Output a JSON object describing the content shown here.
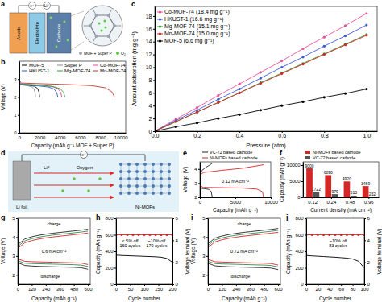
{
  "diagrams": {
    "a": {
      "panel": "a",
      "labels": {
        "anode": "Anode",
        "electrolyte": "Electrolyte",
        "cathode": "Cathode",
        "electron": "e⁻",
        "lithium_ion": "Li⁺"
      },
      "key": [
        "MOF + Super P",
        "O₂"
      ]
    },
    "d": {
      "panel": "d",
      "labels": {
        "lithium_ion": "Li⁺",
        "oxygen": "Oxygen",
        "electron": "e⁻",
        "li_foil": "Li foil",
        "ni_mofs": "Ni-MOFs"
      }
    }
  },
  "chart_data": [
    {
      "panel": "b",
      "type": "line",
      "x_label": "Capacity (mAh g⁻¹ MOF + Super P)",
      "y_label": "Voltage (V)",
      "xlim": [
        0,
        10500
      ],
      "xticks": [
        0,
        2000,
        4000,
        6000,
        8000,
        10000
      ],
      "ylim": [
        0,
        4
      ],
      "yticks": [
        0,
        1,
        2,
        3
      ],
      "legend": "upper left",
      "series": [
        {
          "name": "MOF-5",
          "color": "#000000",
          "x": [
            0,
            40,
            500,
            1000,
            1500,
            1800,
            1940,
            2000
          ],
          "values": [
            2.85,
            2.72,
            2.68,
            2.65,
            2.6,
            2.48,
            2.28,
            2.0
          ]
        },
        {
          "name": "Super P",
          "color": "#8c8c8c",
          "x": [
            0,
            30,
            400,
            800,
            1200,
            1440,
            1550,
            1600
          ],
          "values": [
            2.85,
            2.7,
            2.66,
            2.63,
            2.58,
            2.45,
            2.25,
            2.0
          ]
        },
        {
          "name": "Co-MOF-74",
          "color": "#e0479e",
          "x": [
            0,
            80,
            1050,
            2100,
            3150,
            3780,
            4070,
            4200
          ],
          "values": [
            2.9,
            2.74,
            2.7,
            2.66,
            2.6,
            2.48,
            2.28,
            2.0
          ]
        },
        {
          "name": "HKUST-1",
          "color": "#2b59c3",
          "x": [
            0,
            80,
            950,
            1900,
            2850,
            3420,
            3690,
            3800
          ],
          "values": [
            2.85,
            2.7,
            2.66,
            2.62,
            2.56,
            2.45,
            2.25,
            2.0
          ]
        },
        {
          "name": "Mg-MOF-74",
          "color": "#2ca02c",
          "x": [
            0,
            90,
            1125,
            2250,
            3375,
            4050,
            4370,
            4500
          ],
          "values": [
            2.88,
            2.73,
            2.69,
            2.65,
            2.58,
            2.46,
            2.26,
            2.0
          ]
        },
        {
          "name": "Mn-MOF-74",
          "color": "#c0392b",
          "x": [
            0,
            190,
            2350,
            4700,
            7050,
            8460,
            9120,
            9400
          ],
          "values": [
            2.95,
            2.78,
            2.74,
            2.7,
            2.64,
            2.52,
            2.3,
            2.0
          ]
        }
      ]
    },
    {
      "panel": "c",
      "type": "line",
      "marker": "circle",
      "x_label": "Pressure (atm)",
      "y_label": "Amount adsorption (mg g⁻¹)",
      "xlim": [
        0,
        1.05
      ],
      "xticks": [
        {
          "value": 0,
          "label": "0.0"
        },
        0.2,
        0.4,
        0.6,
        0.8,
        {
          "value": 1,
          "label": "1.0"
        }
      ],
      "ylim": [
        0,
        19.5
      ],
      "yticks": [
        0,
        2,
        4,
        6,
        8,
        10,
        12,
        14,
        16,
        18
      ],
      "legend": "upper left",
      "x": [
        0,
        0.1,
        0.2,
        0.3,
        0.4,
        0.5,
        0.6,
        0.7,
        0.8,
        0.9,
        1.0
      ],
      "series": [
        {
          "name": "Co-MOF-74 (18.4 mg g⁻¹)",
          "color": "#e8529a",
          "values": [
            0,
            1.9,
            3.7,
            5.6,
            7.4,
            9.2,
            11.0,
            12.9,
            14.7,
            16.5,
            18.4
          ]
        },
        {
          "name": "HKUST-1 (16.6 mg g⁻¹)",
          "color": "#3b5bdb",
          "values": [
            0,
            1.7,
            3.3,
            5.0,
            6.6,
            8.3,
            10.0,
            11.6,
            13.3,
            14.9,
            16.6
          ]
        },
        {
          "name": "Mg-MOF-74 (15.1 mg g⁻¹)",
          "color": "#2ca02c",
          "values": [
            0,
            1.5,
            3.0,
            4.5,
            6.0,
            7.6,
            9.1,
            10.6,
            12.1,
            13.6,
            15.1
          ]
        },
        {
          "name": "Mn-MOF-74 (15.0 mg g⁻¹)",
          "color": "#d62728",
          "values": [
            0,
            1.5,
            3.0,
            4.5,
            6.0,
            7.5,
            9.0,
            10.5,
            12.0,
            13.5,
            15.0
          ]
        },
        {
          "name": "MOF-5 (6.6 mg g⁻¹)",
          "color": "#000000",
          "values": [
            0,
            0.7,
            1.3,
            2.0,
            2.6,
            3.3,
            4.0,
            4.6,
            5.3,
            5.9,
            6.6
          ]
        }
      ]
    },
    {
      "panel": "e",
      "type": "line",
      "x_label": "Capacity (mAh g⁻¹)",
      "y_label": "Voltage (V)",
      "xlim": [
        0,
        10000
      ],
      "xticks": [
        0,
        5000,
        10000
      ],
      "ylim": [
        2,
        4.5
      ],
      "yticks": [
        2,
        3,
        4
      ],
      "legend": "top",
      "annotations": [
        "0.12 mA cm⁻²"
      ],
      "series": [
        {
          "name": "VC-72 based cathode",
          "color": "#222222",
          "x": [
            0,
            300,
            800,
            1300,
            1600,
            1750,
            null,
            0,
            300,
            800,
            1300,
            1750
          ],
          "values": [
            2.75,
            2.62,
            2.6,
            2.55,
            2.4,
            2.0,
            null,
            3.6,
            3.9,
            4.1,
            4.25,
            4.4
          ]
        },
        {
          "name": "Ni-MOFs based cathode",
          "color": "#d62728",
          "x": [
            0,
            500,
            3000,
            6000,
            8000,
            8800,
            9000,
            null,
            0,
            500,
            3000,
            6000,
            9000
          ],
          "values": [
            2.8,
            2.7,
            2.68,
            2.65,
            2.58,
            2.4,
            2.0,
            null,
            3.55,
            3.75,
            3.9,
            4.05,
            4.3
          ]
        }
      ]
    },
    {
      "panel": "f",
      "type": "bar",
      "x_label": "Current density (mA cm⁻²)",
      "y_label": "Capacity (mAh g⁻¹)",
      "categories": [
        "0.12",
        "0.24",
        "0.48",
        "0.96"
      ],
      "ylim": [
        0,
        11000
      ],
      "yticks": [
        0,
        5000,
        10000
      ],
      "legend": "top",
      "data_labels": true,
      "series": [
        {
          "name": "Ni-MOFs based cathode",
          "color": "#d62728",
          "values": [
            9000,
            6890,
            4920,
            3469
          ]
        },
        {
          "name": "VC-72 based cathode",
          "color": "#555555",
          "values": [
            1722,
            979,
            513,
            232
          ]
        }
      ]
    },
    {
      "panel": "g",
      "type": "line",
      "x_label": "Capacity (mAh g⁻¹)",
      "y_label": "Voltage (V)",
      "xlim": [
        0,
        620
      ],
      "xticks": [
        0,
        120,
        240,
        360,
        480,
        600
      ],
      "ylim": [
        1.5,
        5
      ],
      "yticks": [
        2,
        3,
        4,
        5
      ],
      "annotations": [
        "charge",
        "discharge",
        "0.6 mA cm⁻²"
      ],
      "x": [
        0,
        60,
        120,
        180,
        240,
        300,
        360,
        420,
        480,
        540,
        600
      ],
      "series": [
        {
          "color": "#d62728",
          "values": [
            2.85,
            2.72,
            2.7,
            2.69,
            2.68,
            2.67,
            2.66,
            2.65,
            2.64,
            2.63,
            2.55
          ]
        },
        {
          "color": "#2e8b57",
          "values": [
            2.75,
            2.62,
            2.6,
            2.59,
            2.58,
            2.57,
            2.56,
            2.55,
            2.54,
            2.52,
            2.45
          ]
        },
        {
          "color": "#222222",
          "values": [
            2.65,
            2.5,
            2.47,
            2.45,
            2.44,
            2.43,
            2.42,
            2.41,
            2.4,
            2.38,
            2.3
          ]
        },
        {
          "color": "#d62728",
          "values": [
            3.4,
            3.7,
            3.82,
            3.9,
            3.96,
            4.01,
            4.05,
            4.09,
            4.13,
            4.17,
            4.22
          ]
        },
        {
          "color": "#2e8b57",
          "values": [
            3.5,
            3.8,
            3.92,
            4.0,
            4.06,
            4.11,
            4.15,
            4.19,
            4.23,
            4.27,
            4.32
          ]
        },
        {
          "color": "#222222",
          "values": [
            3.6,
            3.9,
            4.02,
            4.1,
            4.16,
            4.21,
            4.25,
            4.29,
            4.33,
            4.37,
            4.42
          ]
        }
      ]
    },
    {
      "panel": "h",
      "type": "line",
      "x_label": "Cycle number",
      "y_label": "Capacity (mAh g⁻¹)",
      "y2_label": "Voltage terminal (V)",
      "xlim": [
        0,
        200
      ],
      "xticks": [
        0,
        50,
        100,
        150,
        200
      ],
      "ylim": [
        0,
        800
      ],
      "yticks": [
        0,
        200,
        400,
        600,
        800
      ],
      "y2lim": [
        0,
        6
      ],
      "y2ticks": [
        0,
        2,
        4,
        6
      ],
      "annotations": [
        [
          "< 5% off",
          "160 cycles"
        ],
        [
          "~10% off",
          "170 cycles"
        ]
      ],
      "x": [
        0,
        20,
        40,
        60,
        80,
        100,
        120,
        140,
        160,
        180,
        200
      ],
      "series": [
        {
          "color": "#d62728",
          "marker": "circle",
          "values": [
            600,
            600,
            600,
            600,
            600,
            600,
            600,
            600,
            600,
            600,
            600
          ]
        },
        {
          "color": "#000000",
          "axis": "y2",
          "values": [
            2.65,
            2.62,
            2.6,
            2.58,
            2.56,
            2.54,
            2.52,
            2.5,
            2.46,
            2.35,
            2.0
          ]
        }
      ]
    },
    {
      "panel": "i",
      "type": "line",
      "x_label": "Capacity (mAh g⁻¹)",
      "y_label": "Voltage (V)",
      "xlim": [
        0,
        620
      ],
      "xticks": [
        0,
        120,
        240,
        360,
        480,
        600
      ],
      "ylim": [
        1.5,
        5
      ],
      "yticks": [
        2,
        3,
        4,
        5
      ],
      "annotations": [
        "charge",
        "discharge",
        "0.72 mA cm⁻²"
      ],
      "x": [
        0,
        60,
        120,
        180,
        240,
        300,
        360,
        420,
        480,
        540,
        600
      ],
      "series": [
        {
          "color": "#d62728",
          "values": [
            2.82,
            2.7,
            2.68,
            2.67,
            2.66,
            2.65,
            2.64,
            2.63,
            2.62,
            2.6,
            2.52
          ]
        },
        {
          "color": "#2e8b57",
          "values": [
            2.72,
            2.6,
            2.58,
            2.57,
            2.56,
            2.55,
            2.54,
            2.53,
            2.52,
            2.5,
            2.42
          ]
        },
        {
          "color": "#222222",
          "values": [
            2.62,
            2.48,
            2.45,
            2.43,
            2.42,
            2.41,
            2.4,
            2.39,
            2.38,
            2.36,
            2.28
          ]
        },
        {
          "color": "#d62728",
          "values": [
            3.45,
            3.75,
            3.86,
            3.94,
            4.0,
            4.05,
            4.09,
            4.13,
            4.17,
            4.21,
            4.26
          ]
        },
        {
          "color": "#2e8b57",
          "values": [
            3.55,
            3.85,
            3.96,
            4.04,
            4.1,
            4.15,
            4.19,
            4.23,
            4.27,
            4.31,
            4.36
          ]
        },
        {
          "color": "#222222",
          "values": [
            3.65,
            3.95,
            4.06,
            4.14,
            4.2,
            4.25,
            4.29,
            4.33,
            4.37,
            4.41,
            4.46
          ]
        }
      ]
    },
    {
      "panel": "j",
      "type": "line",
      "x_label": "Cycle number",
      "y_label": "Capacity (mAh g⁻¹)",
      "y2_label": "Voltage terminal (V)",
      "xlim": [
        0,
        100
      ],
      "xticks": [
        0,
        20,
        40,
        60,
        80,
        100
      ],
      "ylim": [
        0,
        800
      ],
      "yticks": [
        0,
        200,
        400,
        600,
        800
      ],
      "y2lim": [
        0,
        6
      ],
      "y2ticks": [
        0,
        2,
        4,
        6
      ],
      "annotations": [
        [
          "~10% off",
          "83 cycles"
        ]
      ],
      "x": [
        0,
        10,
        20,
        30,
        40,
        50,
        60,
        70,
        80,
        90,
        100
      ],
      "series": [
        {
          "color": "#d62728",
          "marker": "circle",
          "values": [
            600,
            600,
            600,
            600,
            600,
            600,
            600,
            600,
            600,
            600,
            600
          ]
        },
        {
          "color": "#000000",
          "axis": "y2",
          "values": [
            2.62,
            2.58,
            2.55,
            2.52,
            2.49,
            2.46,
            2.42,
            2.38,
            2.3,
            2.1,
            1.5
          ]
        }
      ]
    }
  ]
}
